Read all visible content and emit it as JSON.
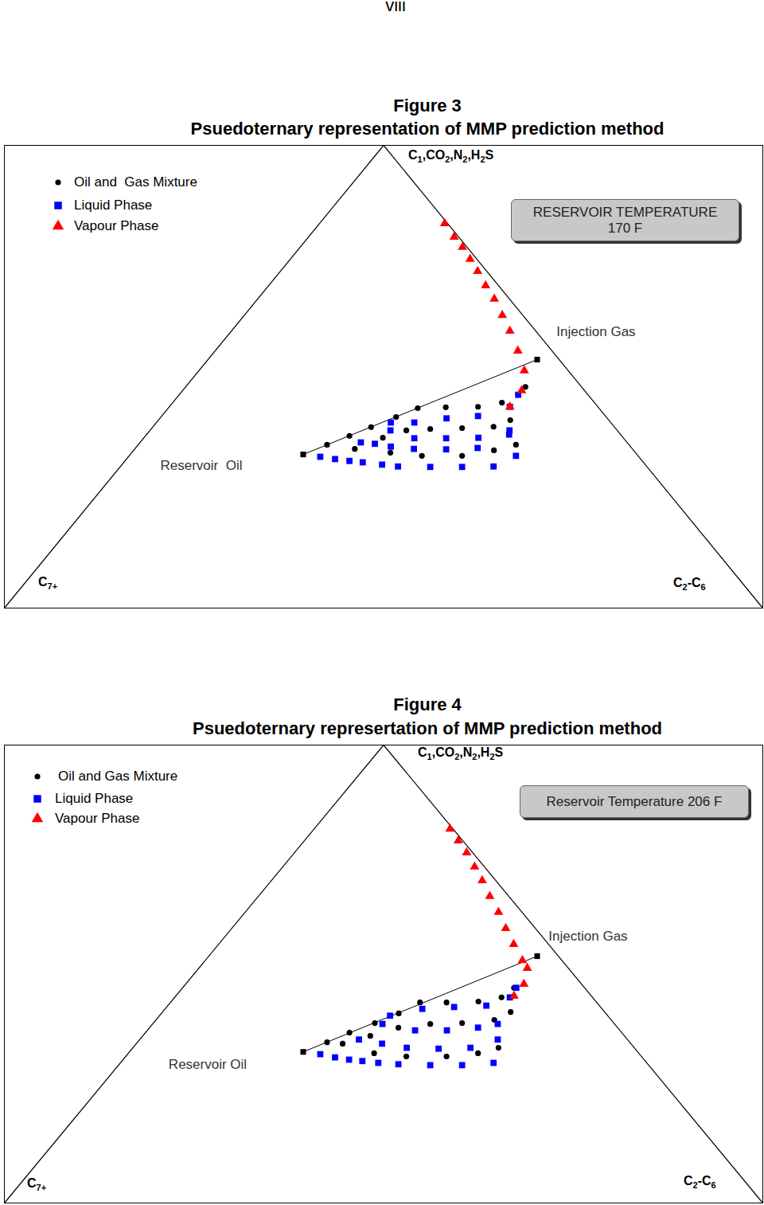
{
  "page_number": "viii",
  "chart_data": [
    {
      "type": "ternary",
      "title": "Figure 3",
      "subtitle": "Psuedoternary representation of MMP prediction method",
      "vertices": {
        "top": "C1,CO2,N2,H2S",
        "left": "C7+",
        "right": "C2-C6"
      },
      "annotations": [
        "RESERVOIR TEMPERATURE",
        "170 F"
      ],
      "points": [
        {
          "label": "Reservoir  Oil",
          "value": [
            0.332,
            0.228
          ]
        },
        {
          "label": "Injection Gas",
          "value": [
            0.537,
            0.434
          ]
        }
      ],
      "series": [
        {
          "name": "Oil and  Gas Mixture",
          "color": "#000000",
          "marker": "circle",
          "values": [
            [
              [
                0.353,
                0.249
              ],
              [
                0.372,
                0.269
              ],
              [
                0.391,
                0.288
              ],
              [
                0.413,
                0.31
              ],
              [
                0.432,
                0.329
              ],
              [
                0.434,
                0.365
              ],
              [
                0.435,
                0.407
              ],
              [
                0.444,
                0.434
              ],
              [
                0.461,
                0.447
              ],
              [
                0.478,
                0.448
              ]
            ],
            [
              [
                0.344,
                0.29
              ],
              [
                0.368,
                0.315
              ],
              [
                0.384,
                0.338
              ],
              [
                0.387,
                0.368
              ],
              [
                0.389,
                0.409
              ],
              [
                0.392,
                0.449
              ],
              [
                0.406,
                0.464
              ]
            ],
            [
              [
                0.336,
                0.341
              ],
              [
                0.329,
                0.386
              ],
              [
                0.329,
                0.439
              ],
              [
                0.341,
                0.475
              ],
              [
                0.353,
                0.498
              ]
            ]
          ]
        },
        {
          "name": "Liquid Phase",
          "color": "#0000ff",
          "marker": "square",
          "values": [
            [
              [
                0.327,
                0.253
              ],
              [
                0.322,
                0.275
              ],
              [
                0.318,
                0.296
              ],
              [
                0.315,
                0.315
              ],
              [
                0.31,
                0.343
              ],
              [
                0.306,
                0.366
              ],
              [
                0.305,
                0.409
              ],
              [
                0.305,
                0.451
              ],
              [
                0.306,
                0.492
              ],
              [
                0.329,
                0.51
              ]
            ],
            [
              [
                0.358,
                0.291
              ],
              [
                0.355,
                0.311
              ],
              [
                0.349,
                0.335
              ],
              [
                0.344,
                0.368
              ],
              [
                0.343,
                0.411
              ],
              [
                0.346,
                0.451
              ],
              [
                0.375,
                0.478
              ]
            ],
            [
              [
                0.384,
                0.317
              ],
              [
                0.367,
                0.357
              ],
              [
                0.367,
                0.399
              ],
              [
                0.368,
                0.441
              ],
              [
                0.384,
                0.474
              ]
            ],
            [
              [
                0.401,
                0.309
              ],
              [
                0.401,
                0.34
              ],
              [
                0.41,
                0.378
              ],
              [
                0.415,
                0.417
              ],
              [
                0.435,
                0.449
              ],
              [
                0.461,
                0.447
              ]
            ]
          ]
        },
        {
          "name": "Vapour Phase",
          "color": "#ff0000",
          "marker": "triangle",
          "values": [
            [
              [
                0.831,
                0.165
              ],
              [
                0.802,
                0.192
              ],
              [
                0.78,
                0.214
              ],
              [
                0.754,
                0.237
              ],
              [
                0.728,
                0.26
              ],
              [
                0.697,
                0.286
              ],
              [
                0.668,
                0.312
              ],
              [
                0.633,
                0.34
              ],
              [
                0.599,
                0.367
              ],
              [
                0.556,
                0.399
              ],
              [
                0.513,
                0.429
              ],
              [
                0.47,
                0.447
              ],
              [
                0.435,
                0.449
              ]
            ]
          ]
        }
      ]
    },
    {
      "type": "ternary",
      "title": "Figure 4",
      "subtitle": "Psuedoternary represertation of MMP prediction method",
      "vertices": {
        "top": "C1,CO2,N2,H2S",
        "left": "C7+",
        "right": "C2-C6"
      },
      "annotations": [
        "Reservoir Temperature 206 F"
      ],
      "points": [
        {
          "label": "Reservoir Oil",
          "value": [
            0.33,
            0.229
          ]
        },
        {
          "label": "Injection Gas",
          "value": [
            0.539,
            0.433
          ]
        }
      ],
      "series": [
        {
          "name": "Oil and Gas Mixture",
          "color": "#000000",
          "marker": "circle",
          "values": [
            [
              [
                0.351,
                0.25
              ],
              [
                0.372,
                0.269
              ],
              [
                0.393,
                0.292
              ],
              [
                0.414,
                0.313
              ],
              [
                0.438,
                0.329
              ],
              [
                0.438,
                0.364
              ],
              [
                0.44,
                0.405
              ],
              [
                0.449,
                0.431
              ],
              [
                0.47,
                0.437
              ]
            ],
            [
              [
                0.348,
                0.272
              ],
              [
                0.365,
                0.3
              ],
              [
                0.383,
                0.328
              ],
              [
                0.391,
                0.366
              ],
              [
                0.393,
                0.407
              ],
              [
                0.4,
                0.446
              ],
              [
                0.417,
                0.459
              ]
            ],
            [
              [
                0.327,
                0.324
              ],
              [
                0.32,
                0.37
              ],
              [
                0.32,
                0.423
              ],
              [
                0.327,
                0.461
              ],
              [
                0.339,
                0.482
              ]
            ]
          ]
        },
        {
          "name": "Liquid Phase",
          "color": "#0000ff",
          "marker": "square",
          "values": [
            [
              [
                0.325,
                0.254
              ],
              [
                0.318,
                0.277
              ],
              [
                0.313,
                0.298
              ],
              [
                0.31,
                0.317
              ],
              [
                0.306,
                0.34
              ],
              [
                0.303,
                0.368
              ],
              [
                0.301,
                0.411
              ],
              [
                0.301,
                0.453
              ],
              [
                0.306,
                0.492
              ]
            ],
            [
              [
                0.357,
                0.289
              ],
              [
                0.348,
                0.324
              ],
              [
                0.339,
                0.361
              ],
              [
                0.337,
                0.404
              ],
              [
                0.339,
                0.445
              ],
              [
                0.357,
                0.472
              ]
            ],
            [
              [
                0.391,
                0.303
              ],
              [
                0.377,
                0.353
              ],
              [
                0.377,
                0.395
              ],
              [
                0.383,
                0.433
              ],
              [
                0.391,
                0.455
              ]
            ],
            [
              [
                0.409,
                0.304
              ],
              [
                0.424,
                0.339
              ],
              [
                0.428,
                0.379
              ],
              [
                0.431,
                0.42
              ],
              [
                0.449,
                0.442
              ],
              [
                0.47,
                0.44
              ]
            ]
          ]
        },
        {
          "name": "Vapour Phase",
          "color": "#ff0000",
          "marker": "triangle",
          "values": [
            [
              [
                0.817,
                0.179
              ],
              [
                0.791,
                0.203
              ],
              [
                0.765,
                0.227
              ],
              [
                0.734,
                0.253
              ],
              [
                0.704,
                0.278
              ],
              [
                0.67,
                0.305
              ],
              [
                0.635,
                0.334
              ],
              [
                0.6,
                0.361
              ],
              [
                0.565,
                0.389
              ],
              [
                0.53,
                0.418
              ],
              [
                0.513,
                0.433
              ],
              [
                0.478,
                0.446
              ],
              [
                0.452,
                0.446
              ]
            ]
          ]
        }
      ]
    }
  ]
}
